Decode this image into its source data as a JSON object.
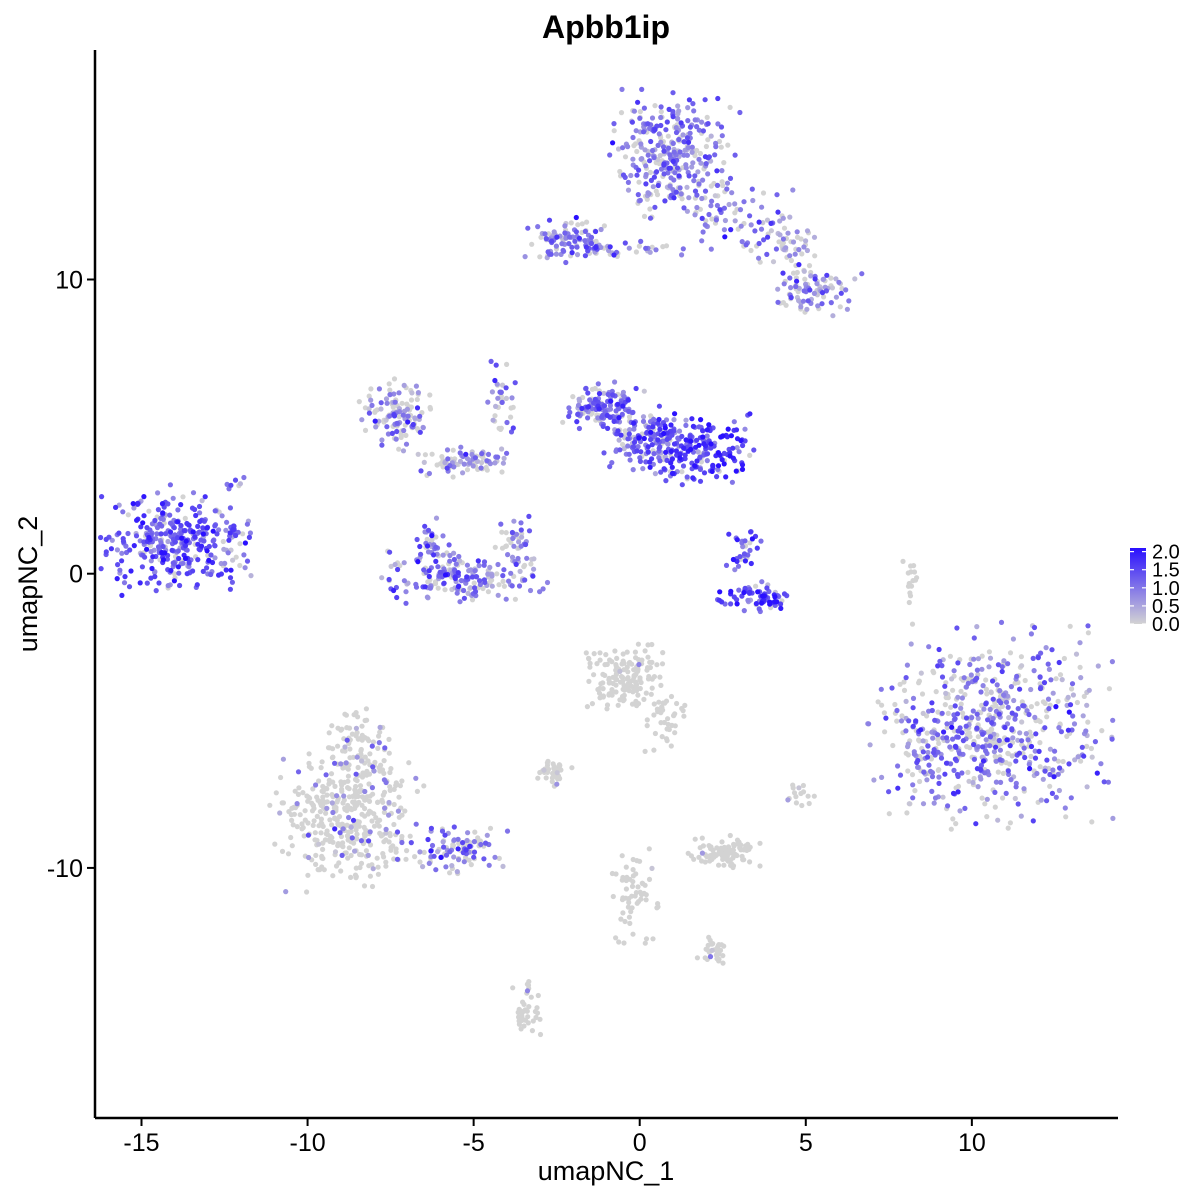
{
  "chart_data": {
    "type": "scatter",
    "title": "Apbb1ip",
    "xlabel": "umapNC_1",
    "ylabel": "umapNC_2",
    "xlim": [
      -16.4,
      14.4
    ],
    "ylim": [
      -18.5,
      17.8
    ],
    "x_ticks": [
      -15,
      -10,
      -5,
      0,
      5,
      10
    ],
    "x_tick_labels": [
      "-15",
      "-10",
      "-5",
      "0",
      "5",
      "10"
    ],
    "y_ticks": [
      -10,
      0,
      10
    ],
    "y_tick_labels": [
      "-10",
      "0",
      "10"
    ],
    "grid": false,
    "legend": {
      "position": "right",
      "color_scale": {
        "low": "#d3d3d3",
        "high": "#2a10ff",
        "min": 0.0,
        "max": 2.1
      },
      "breaks": [
        0.0,
        0.5,
        1.0,
        1.5,
        2.0
      ],
      "labels": [
        "0.0",
        "0.5",
        "1.0",
        "1.5",
        "2.0"
      ]
    },
    "clusters": [
      {
        "cx": 1.0,
        "cy": 14.2,
        "rx": 1.3,
        "ry": 1.5,
        "n": 320,
        "expr": 1.0,
        "frac": 0.72
      },
      {
        "cx": 2.8,
        "cy": 12.2,
        "rx": 1.3,
        "ry": 0.9,
        "n": 70,
        "expr": 0.9,
        "frac": 0.65
      },
      {
        "cx": 4.4,
        "cy": 11.2,
        "rx": 1.0,
        "ry": 0.6,
        "n": 50,
        "expr": 0.8,
        "frac": 0.6
      },
      {
        "cx": 5.3,
        "cy": 9.6,
        "rx": 0.9,
        "ry": 0.6,
        "n": 90,
        "expr": 0.8,
        "frac": 0.55
      },
      {
        "cx": -2.3,
        "cy": 11.3,
        "rx": 0.8,
        "ry": 0.6,
        "n": 90,
        "expr": 1.0,
        "frac": 0.8
      },
      {
        "cx": -0.6,
        "cy": 11.0,
        "rx": 1.4,
        "ry": 0.25,
        "n": 40,
        "expr": 0.9,
        "frac": 0.7
      },
      {
        "cx": -14.0,
        "cy": 1.2,
        "rx": 1.5,
        "ry": 1.2,
        "n": 320,
        "expr": 1.3,
        "frac": 0.9
      },
      {
        "cx": -12.3,
        "cy": 1.5,
        "rx": 0.5,
        "ry": 1.4,
        "n": 40,
        "expr": 1.1,
        "frac": 0.8
      },
      {
        "cx": -7.3,
        "cy": 5.4,
        "rx": 0.8,
        "ry": 0.8,
        "n": 120,
        "expr": 0.8,
        "frac": 0.6
      },
      {
        "cx": -5.3,
        "cy": 3.8,
        "rx": 0.9,
        "ry": 0.4,
        "n": 80,
        "expr": 0.8,
        "frac": 0.55
      },
      {
        "cx": -4.2,
        "cy": 5.6,
        "rx": 0.3,
        "ry": 1.5,
        "n": 40,
        "expr": 1.0,
        "frac": 0.6
      },
      {
        "cx": -5.3,
        "cy": -0.1,
        "rx": 1.7,
        "ry": 0.6,
        "n": 180,
        "expr": 1.0,
        "frac": 0.8
      },
      {
        "cx": -6.3,
        "cy": 0.9,
        "rx": 0.4,
        "ry": 0.7,
        "n": 40,
        "expr": 1.0,
        "frac": 0.8
      },
      {
        "cx": -3.8,
        "cy": 1.1,
        "rx": 0.4,
        "ry": 0.6,
        "n": 40,
        "expr": 0.9,
        "frac": 0.7
      },
      {
        "cx": -1.1,
        "cy": 5.6,
        "rx": 0.8,
        "ry": 0.6,
        "n": 140,
        "expr": 1.1,
        "frac": 0.85
      },
      {
        "cx": 0.4,
        "cy": 4.5,
        "rx": 1.0,
        "ry": 0.8,
        "n": 160,
        "expr": 1.2,
        "frac": 0.85
      },
      {
        "cx": 2.0,
        "cy": 4.2,
        "rx": 1.0,
        "ry": 0.8,
        "n": 160,
        "expr": 1.5,
        "frac": 0.9
      },
      {
        "cx": 3.1,
        "cy": 0.8,
        "rx": 0.4,
        "ry": 0.6,
        "n": 30,
        "expr": 1.4,
        "frac": 0.9
      },
      {
        "cx": 3.5,
        "cy": -0.8,
        "rx": 0.9,
        "ry": 0.35,
        "n": 70,
        "expr": 1.5,
        "frac": 0.9
      },
      {
        "cx": 10.6,
        "cy": -5.2,
        "rx": 2.4,
        "ry": 2.3,
        "n": 620,
        "expr": 1.0,
        "frac": 0.6
      },
      {
        "cx": 8.5,
        "cy": -6.2,
        "rx": 0.5,
        "ry": 0.8,
        "n": 40,
        "expr": 0.9,
        "frac": 0.6
      },
      {
        "cx": -8.8,
        "cy": -8.4,
        "rx": 1.5,
        "ry": 1.6,
        "n": 380,
        "expr": 0.8,
        "frac": 0.12
      },
      {
        "cx": -8.5,
        "cy": -6.0,
        "rx": 0.7,
        "ry": 1.0,
        "n": 90,
        "expr": 0.8,
        "frac": 0.15
      },
      {
        "cx": -5.5,
        "cy": -9.3,
        "rx": 1.2,
        "ry": 0.6,
        "n": 100,
        "expr": 1.0,
        "frac": 0.6
      },
      {
        "cx": -0.5,
        "cy": -3.6,
        "rx": 0.9,
        "ry": 0.8,
        "n": 150,
        "expr": 0.5,
        "frac": 0.04
      },
      {
        "cx": 0.7,
        "cy": -5.0,
        "rx": 0.5,
        "ry": 0.7,
        "n": 40,
        "expr": 0.5,
        "frac": 0.03
      },
      {
        "cx": -2.6,
        "cy": -6.8,
        "rx": 0.4,
        "ry": 0.3,
        "n": 40,
        "expr": 0.5,
        "frac": 0.05
      },
      {
        "cx": 2.4,
        "cy": -9.5,
        "rx": 0.8,
        "ry": 0.4,
        "n": 90,
        "expr": 0.5,
        "frac": 0.02
      },
      {
        "cx": -0.2,
        "cy": -11.0,
        "rx": 0.5,
        "ry": 1.2,
        "n": 60,
        "expr": 0.5,
        "frac": 0.03
      },
      {
        "cx": 2.3,
        "cy": -12.8,
        "rx": 0.4,
        "ry": 0.3,
        "n": 30,
        "expr": 0.5,
        "frac": 0.02
      },
      {
        "cx": -3.4,
        "cy": -14.8,
        "rx": 0.3,
        "ry": 0.8,
        "n": 40,
        "expr": 0.5,
        "frac": 0.05
      },
      {
        "cx": 8.2,
        "cy": -0.2,
        "rx": 0.2,
        "ry": 0.8,
        "n": 15,
        "expr": 0.3,
        "frac": 0.0
      },
      {
        "cx": 4.8,
        "cy": -7.5,
        "rx": 0.4,
        "ry": 0.3,
        "n": 15,
        "expr": 0.4,
        "frac": 0.05
      }
    ]
  }
}
